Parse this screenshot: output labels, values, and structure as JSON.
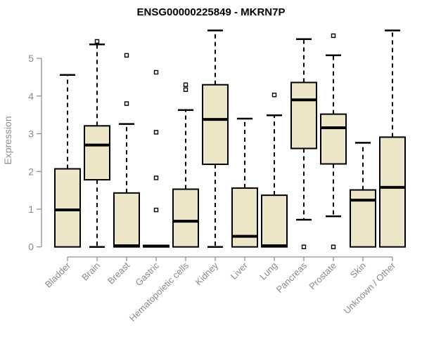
{
  "title": "ENSG00000225849 - MKRN7P",
  "colors": {
    "background": "#ffffff",
    "title_text": "#000000",
    "axis_line": "#8f8f8f",
    "tick_label": "#8a8a8a",
    "box_fill": "#ece5c6",
    "box_border": "#000000",
    "median_line": "#000000",
    "whisker": "#000000",
    "outlier_stroke": "#000000",
    "outlier_fill": "#ffffff"
  },
  "chart_data": {
    "type": "boxplot",
    "title": "ENSG00000225849 - MKRN7P",
    "xlabel": "",
    "ylabel": "Expression",
    "ylim": [
      0,
      5.8
    ],
    "yticks": [
      0,
      1,
      2,
      3,
      4,
      5
    ],
    "grid": false,
    "legend": "none",
    "categories": [
      "Bladder",
      "Brain",
      "Breast",
      "Gastric",
      "Hematopoietic cells",
      "Kidney",
      "Liver",
      "Lung",
      "Pancreas",
      "Prostate",
      "Skin",
      "Unknown / Other"
    ],
    "stats": [
      {
        "category": "Bladder",
        "whisker_low": null,
        "q1": 0,
        "median": 0.98,
        "q3": 2.07,
        "whisker_high": 4.56,
        "outliers": []
      },
      {
        "category": "Brain",
        "whisker_low": 0.0,
        "q1": 1.78,
        "median": 2.7,
        "q3": 3.21,
        "whisker_high": 5.37,
        "outliers": [
          5.45
        ]
      },
      {
        "category": "Breast",
        "whisker_low": null,
        "q1": 0,
        "median": 0.03,
        "q3": 1.43,
        "whisker_high": 3.26,
        "outliers": [
          3.8,
          5.08
        ]
      },
      {
        "category": "Gastric",
        "whisker_low": null,
        "q1": 0,
        "median": 0.02,
        "q3": 0.04,
        "whisker_high": null,
        "outliers": [
          0.98,
          1.83,
          3.04,
          4.63
        ]
      },
      {
        "category": "Hematopoietic cells",
        "whisker_low": null,
        "q1": 0,
        "median": 0.68,
        "q3": 1.53,
        "whisker_high": 3.63,
        "outliers": [
          4.17,
          4.3
        ]
      },
      {
        "category": "Kidney",
        "whisker_low": 0.0,
        "q1": 2.19,
        "median": 3.38,
        "q3": 4.3,
        "whisker_high": 5.74,
        "outliers": []
      },
      {
        "category": "Liver",
        "whisker_low": null,
        "q1": 0,
        "median": 0.28,
        "q3": 1.56,
        "whisker_high": 3.4,
        "outliers": []
      },
      {
        "category": "Lung",
        "whisker_low": null,
        "q1": 0,
        "median": 0.03,
        "q3": 1.37,
        "whisker_high": 3.49,
        "outliers": [
          4.03
        ]
      },
      {
        "category": "Pancreas",
        "whisker_low": 0.72,
        "q1": 2.61,
        "median": 3.9,
        "q3": 4.36,
        "whisker_high": 5.51,
        "outliers": [
          0
        ]
      },
      {
        "category": "Prostate",
        "whisker_low": 0.81,
        "q1": 2.2,
        "median": 3.16,
        "q3": 3.52,
        "whisker_high": 5.08,
        "outliers": [
          0,
          5.6
        ]
      },
      {
        "category": "Skin",
        "whisker_low": null,
        "q1": 0,
        "median": 1.24,
        "q3": 1.51,
        "whisker_high": 2.76,
        "outliers": []
      },
      {
        "category": "Unknown / Other",
        "whisker_low": null,
        "q1": 0,
        "median": 1.58,
        "q3": 2.91,
        "whisker_high": 5.74,
        "outliers": []
      }
    ]
  }
}
